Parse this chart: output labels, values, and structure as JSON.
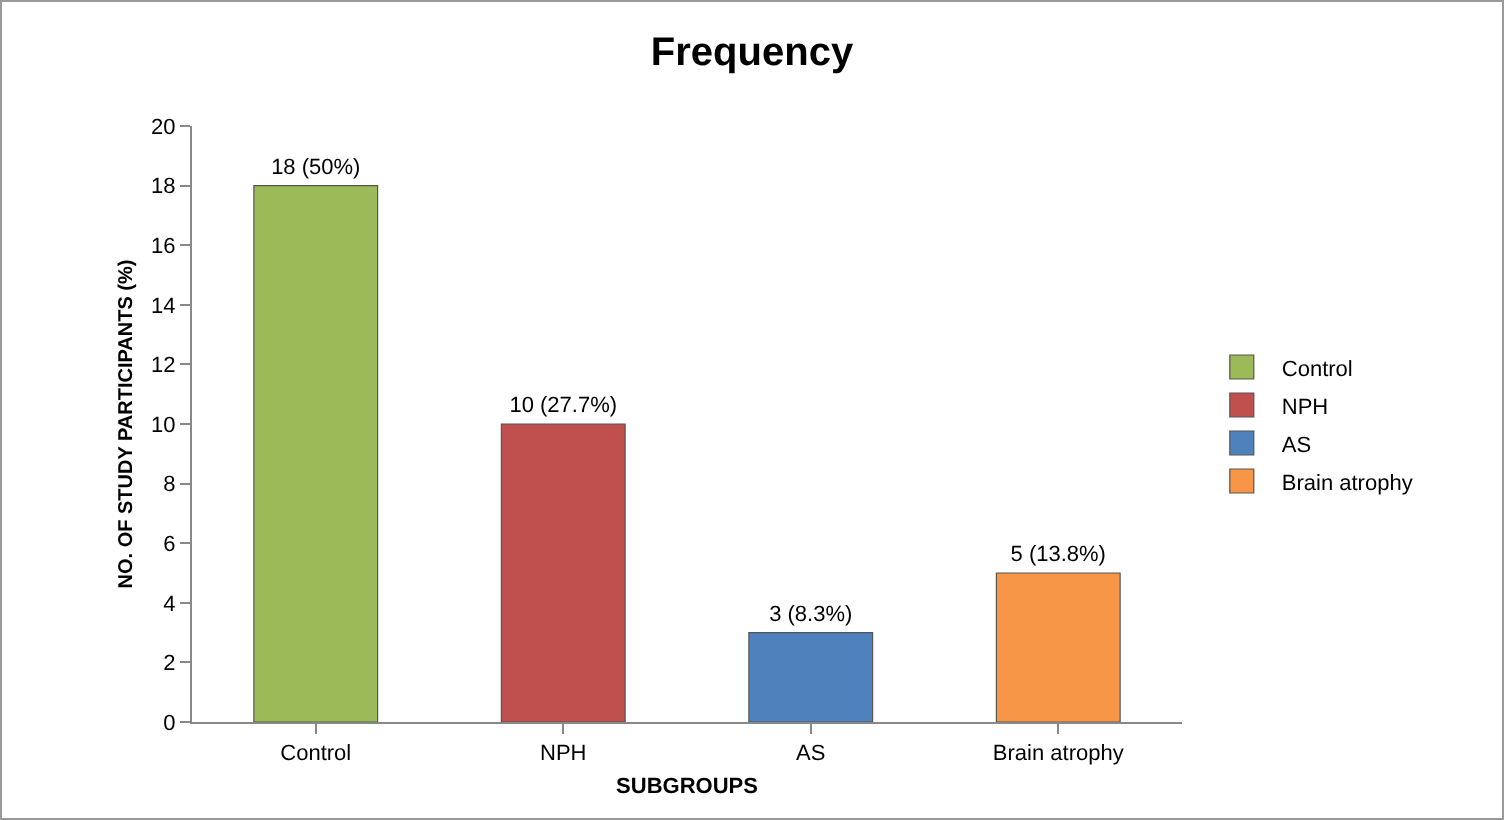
{
  "chart_data": {
    "type": "bar",
    "title": "Frequency",
    "xlabel": "SUBGROUPS",
    "ylabel": "NO. OF STUDY PARTICIPANTS (%)",
    "categories": [
      "Control",
      "NPH",
      "AS",
      "Brain atrophy"
    ],
    "series": [
      {
        "name": "Control",
        "color": "#9bbb59",
        "values": [
          18,
          null,
          null,
          null
        ],
        "value_labels": [
          "18 (50%)",
          null,
          null,
          null
        ]
      },
      {
        "name": "NPH",
        "color": "#c0504d",
        "values": [
          null,
          10,
          null,
          null
        ],
        "value_labels": [
          null,
          "10 (27.7%)",
          null,
          null
        ]
      },
      {
        "name": "AS",
        "color": "#4f81bd",
        "values": [
          null,
          null,
          3,
          null
        ],
        "value_labels": [
          null,
          null,
          "3 (8.3%)",
          null
        ]
      },
      {
        "name": "Brain atrophy",
        "color": "#f79646",
        "values": [
          null,
          null,
          null,
          5
        ],
        "value_labels": [
          null,
          null,
          null,
          "5 (13.8%)"
        ]
      }
    ],
    "ylim": [
      0,
      20
    ],
    "yticks": [
      0,
      2,
      4,
      6,
      8,
      10,
      12,
      14,
      16,
      18,
      20
    ],
    "grid": false,
    "legend": "right"
  }
}
